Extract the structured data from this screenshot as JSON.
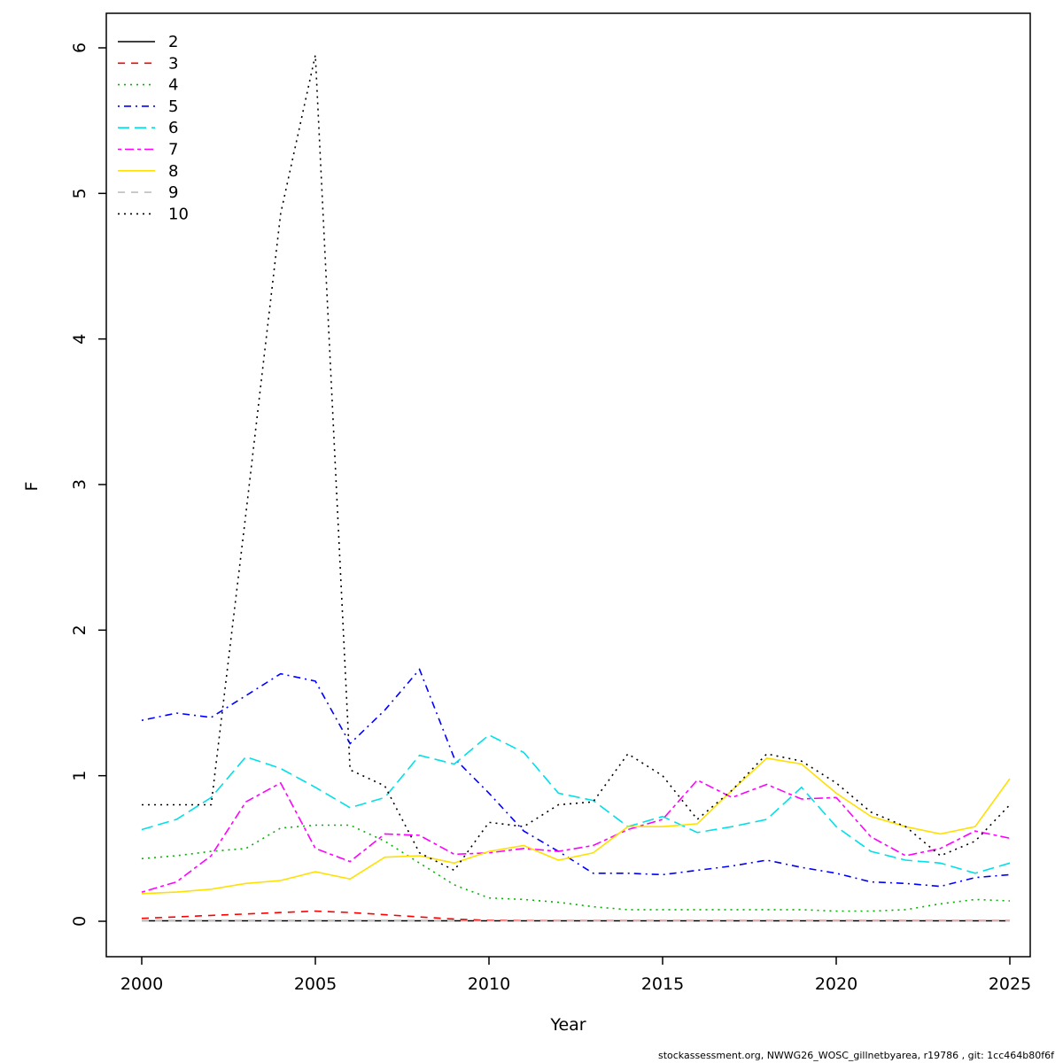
{
  "axes": {
    "xlabel": "Year",
    "ylabel": "F"
  },
  "footer": {
    "text": "stockassessment.org, NWWG26_WOSC_gillnetbyarea, r19786 , git: 1cc464b80f6f"
  },
  "chart_data": {
    "type": "line",
    "title": "",
    "xlabel": "Year",
    "ylabel": "F",
    "xlim": [
      2000,
      2025
    ],
    "ylim": [
      0,
      6
    ],
    "xticks": [
      2000,
      2005,
      2010,
      2015,
      2020,
      2025
    ],
    "yticks": [
      0,
      1,
      2,
      3,
      4,
      5,
      6
    ],
    "grid": false,
    "legend_position": "topleft",
    "x": [
      2000,
      2001,
      2002,
      2003,
      2004,
      2005,
      2006,
      2007,
      2008,
      2009,
      2010,
      2011,
      2012,
      2013,
      2014,
      2015,
      2016,
      2017,
      2018,
      2019,
      2020,
      2021,
      2022,
      2023,
      2024,
      2025
    ],
    "series": [
      {
        "name": "2",
        "color": "#000000",
        "linetype": "solid",
        "values": [
          0.003,
          0.003,
          0.003,
          0.003,
          0.003,
          0.003,
          0.003,
          0.003,
          0.003,
          0.003,
          0.003,
          0.003,
          0.003,
          0.003,
          0.003,
          0.003,
          0.003,
          0.003,
          0.003,
          0.003,
          0.003,
          0.003,
          0.003,
          0.003,
          0.003,
          0.003
        ]
      },
      {
        "name": "3",
        "color": "#ff0000",
        "linetype": "dashed",
        "values": [
          0.02,
          0.03,
          0.04,
          0.05,
          0.06,
          0.07,
          0.06,
          0.045,
          0.03,
          0.015,
          0.006,
          0.004,
          0.003,
          0.003,
          0.003,
          0.003,
          0.003,
          0.003,
          0.003,
          0.003,
          0.003,
          0.003,
          0.003,
          0.003,
          0.003,
          0.003
        ]
      },
      {
        "name": "4",
        "color": "#00b400",
        "linetype": "dotted",
        "values": [
          0.43,
          0.45,
          0.48,
          0.5,
          0.64,
          0.66,
          0.66,
          0.55,
          0.4,
          0.25,
          0.16,
          0.15,
          0.13,
          0.1,
          0.08,
          0.08,
          0.08,
          0.08,
          0.08,
          0.08,
          0.07,
          0.07,
          0.08,
          0.12,
          0.15,
          0.14
        ]
      },
      {
        "name": "5",
        "color": "#0000ff",
        "linetype": "dotdash",
        "values": [
          1.38,
          1.43,
          1.4,
          1.55,
          1.7,
          1.65,
          1.22,
          1.45,
          1.73,
          1.12,
          0.88,
          0.62,
          0.48,
          0.33,
          0.33,
          0.32,
          0.35,
          0.38,
          0.42,
          0.37,
          0.33,
          0.27,
          0.26,
          0.24,
          0.3,
          0.32
        ]
      },
      {
        "name": "6",
        "color": "#00e0e8",
        "linetype": "longdash",
        "values": [
          0.63,
          0.7,
          0.85,
          1.13,
          1.05,
          0.92,
          0.78,
          0.85,
          1.14,
          1.08,
          1.28,
          1.16,
          0.88,
          0.83,
          0.65,
          0.72,
          0.61,
          0.65,
          0.7,
          0.92,
          0.65,
          0.48,
          0.42,
          0.4,
          0.33,
          0.4
        ]
      },
      {
        "name": "7",
        "color": "#ff00ff",
        "linetype": "twodash",
        "values": [
          0.2,
          0.27,
          0.45,
          0.82,
          0.95,
          0.5,
          0.41,
          0.6,
          0.59,
          0.46,
          0.47,
          0.5,
          0.48,
          0.52,
          0.63,
          0.7,
          0.97,
          0.85,
          0.94,
          0.84,
          0.85,
          0.58,
          0.45,
          0.5,
          0.62,
          0.57
        ]
      },
      {
        "name": "8",
        "color": "#ffe000",
        "linetype": "solid",
        "values": [
          0.19,
          0.2,
          0.22,
          0.26,
          0.28,
          0.34,
          0.29,
          0.44,
          0.45,
          0.4,
          0.48,
          0.52,
          0.42,
          0.47,
          0.65,
          0.65,
          0.67,
          0.9,
          1.12,
          1.08,
          0.88,
          0.72,
          0.65,
          0.6,
          0.65,
          0.98
        ]
      },
      {
        "name": "9",
        "color": "#bebebe",
        "linetype": "dashed",
        "values": [
          0.002,
          0.002,
          0.002,
          0.002,
          0.002,
          0.002,
          0.002,
          0.002,
          0.002,
          0.002,
          0.002,
          0.002,
          0.002,
          0.002,
          0.002,
          0.002,
          0.002,
          0.002,
          0.002,
          0.002,
          0.002,
          0.002,
          0.002,
          0.002,
          0.002,
          0.002
        ]
      },
      {
        "name": "10",
        "color": "#000000",
        "linetype": "dotted",
        "values": [
          0.8,
          0.8,
          0.8,
          2.8,
          4.86,
          5.95,
          1.04,
          0.93,
          0.47,
          0.35,
          0.68,
          0.65,
          0.8,
          0.82,
          1.15,
          1.0,
          0.7,
          0.9,
          1.15,
          1.1,
          0.95,
          0.75,
          0.65,
          0.45,
          0.55,
          0.8
        ]
      }
    ]
  }
}
